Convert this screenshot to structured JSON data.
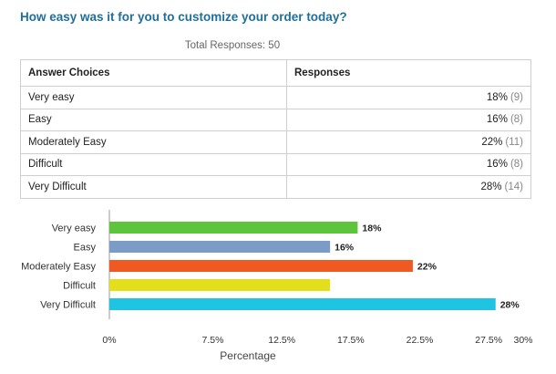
{
  "survey": {
    "question": "How easy was it for you to customize your order today?",
    "total_responses": "Total Responses: 50"
  },
  "table": {
    "headers": [
      "Answer Choices",
      "Responses"
    ],
    "rows": [
      {
        "choice": "Very easy",
        "percent": "18%",
        "count": "(9)"
      },
      {
        "choice": "Easy",
        "percent": "16%",
        "count": "(8)"
      },
      {
        "choice": "Moderately Easy",
        "percent": "22%",
        "count": "(11)"
      },
      {
        "choice": "Difficult",
        "percent": "16%",
        "count": "(8)"
      },
      {
        "choice": "Very Difficult",
        "percent": "28%",
        "count": "(14)"
      }
    ]
  },
  "chart_data": {
    "type": "bar",
    "orientation": "horizontal",
    "categories": [
      "Very easy",
      "Easy",
      "Moderately Easy",
      "Difficult",
      "Very Difficult"
    ],
    "values": [
      18,
      16,
      22,
      16,
      28
    ],
    "data_labels": [
      "18%",
      "16%",
      "22%",
      "",
      "28%"
    ],
    "colors": [
      "#5cc53c",
      "#7a9cc6",
      "#f05a22",
      "#e3df1c",
      "#1ec4e2"
    ],
    "xlabel": "Percentage",
    "ylabel": "",
    "xlim": [
      0,
      30
    ],
    "xticks": [
      0,
      7.5,
      12.5,
      17.5,
      22.5,
      27.5,
      30
    ],
    "xtick_labels": [
      "0%",
      "7.5%",
      "12.5%",
      "17.5%",
      "22.5%",
      "27.5%",
      "30%"
    ],
    "grid": false,
    "legend": "none"
  }
}
